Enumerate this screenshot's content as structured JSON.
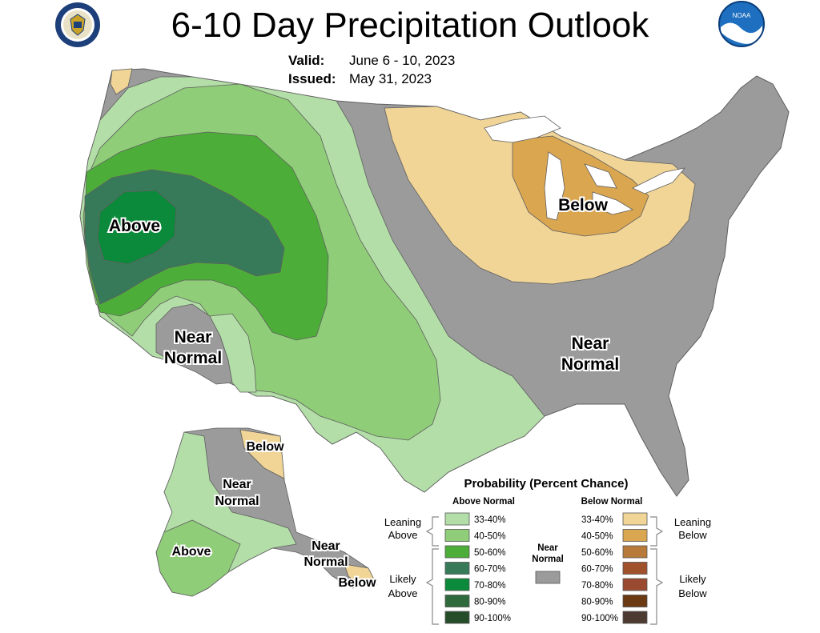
{
  "title": "6-10 Day Precipitation Outlook",
  "valid": {
    "label": "Valid:",
    "value": "June 6 - 10, 2023"
  },
  "issued": {
    "label": "Issued:",
    "value": "May 31, 2023"
  },
  "logos": {
    "left": "us-department-of-commerce-seal",
    "right": "noaa-logo"
  },
  "map_labels": {
    "conus_above": "Above",
    "conus_below": "Below",
    "sw_near_1": "Near",
    "sw_near_2": "Normal",
    "se_near_1": "Near",
    "se_near_2": "Normal",
    "ak_below": "Below",
    "ak_near_1": "Near",
    "ak_near_2": "Normal",
    "ak_above": "Above",
    "se_ak_near_1": "Near",
    "se_ak_near_2": "Normal",
    "se_ak_below": "Below"
  },
  "legend": {
    "title": "Probability (Percent Chance)",
    "above_header": "Above Normal",
    "below_header": "Below Normal",
    "near_1": "Near",
    "near_2": "Normal",
    "leaning_above_1": "Leaning",
    "leaning_above_2": "Above",
    "likely_above_1": "Likely",
    "likely_above_2": "Above",
    "leaning_below_1": "Leaning",
    "leaning_below_2": "Below",
    "likely_below_1": "Likely",
    "likely_below_2": "Below",
    "above_bins": [
      {
        "label": "33-40%",
        "color": "#b3dea8"
      },
      {
        "label": "40-50%",
        "color": "#8fcd78"
      },
      {
        "label": "50-60%",
        "color": "#4cae38"
      },
      {
        "label": "60-70%",
        "color": "#377a5a"
      },
      {
        "label": "70-80%",
        "color": "#0a8a3a"
      },
      {
        "label": "80-90%",
        "color": "#2f6a3c"
      },
      {
        "label": "90-100%",
        "color": "#254d2a"
      }
    ],
    "below_bins": [
      {
        "label": "33-40%",
        "color": "#f1d597"
      },
      {
        "label": "40-50%",
        "color": "#dba650"
      },
      {
        "label": "50-60%",
        "color": "#b87a3a"
      },
      {
        "label": "60-70%",
        "color": "#a0522d"
      },
      {
        "label": "70-80%",
        "color": "#9a4a30"
      },
      {
        "label": "80-90%",
        "color": "#6b3a12"
      },
      {
        "label": "90-100%",
        "color": "#4d3a30"
      }
    ],
    "near_color": "#9b9b9b"
  }
}
